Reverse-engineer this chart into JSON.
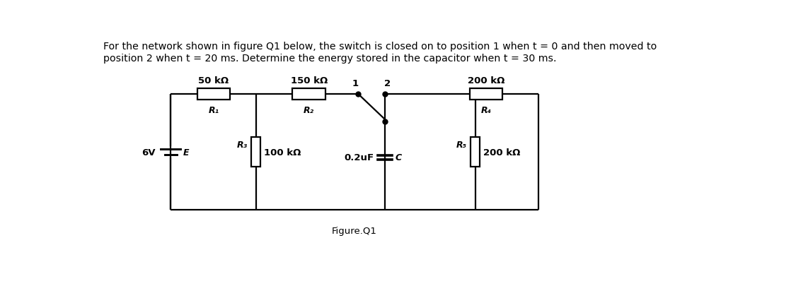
{
  "title_text": "For the network shown in figure Q1 below, the switch is closed on to position 1 when t = 0 and then moved to\nposition 2 when t = 20 ms. Determine the energy stored in the capacitor when t = 30 ms.",
  "figure_label": "Figure.Q1",
  "bg_color": "#ffffff",
  "line_color": "#000000",
  "labels": {
    "R1_val": "50 kΩ",
    "R2_val": "150 kΩ",
    "R3_val": "100 kΩ",
    "R4_val": "200 kΩ",
    "R5_val": "200 kΩ",
    "R1_sub": "R₁",
    "R2_sub": "R₂",
    "R3_sub": "R₃",
    "R4_sub": "R₄",
    "R5_sub": "R₅",
    "C_val": "0.2uF",
    "C_sub": "C",
    "E_val": "6V",
    "E_sub": "E",
    "sw1": "1",
    "sw2": "2"
  },
  "font_size_title": 10.2,
  "font_size_label": 9.5,
  "font_size_sub": 9.0
}
